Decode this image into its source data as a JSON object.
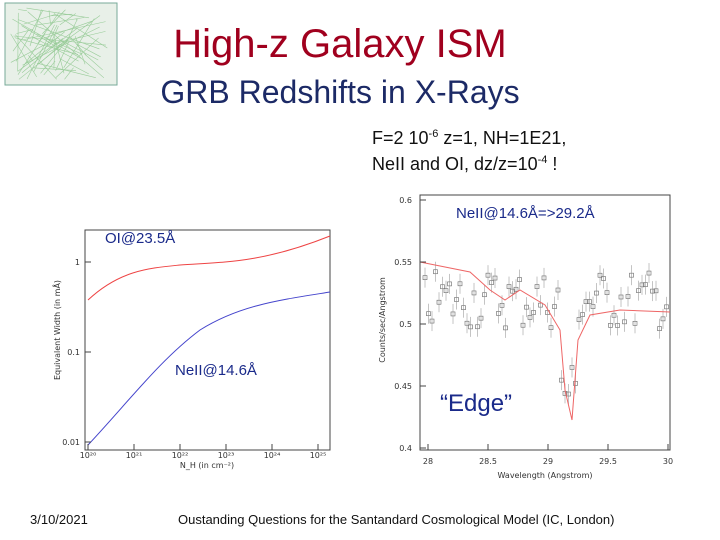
{
  "header": {
    "title": "High-z Galaxy ISM",
    "subtitle": "GRB Redshifts in X-Rays"
  },
  "note": {
    "line1": [
      "F=2 10",
      "-6",
      " z=1, NH=1E21,"
    ],
    "line2": [
      "NeII and OI, dz/z=10",
      "-4",
      " !"
    ]
  },
  "left_plot": {
    "ylabel": "Equivalent Width (in mÅ)",
    "xlabel": "N_H (in cm⁻²)",
    "yticks": [
      "1",
      "0.1",
      "0.01"
    ],
    "xticks": [
      "10²⁰",
      "10²¹",
      "10²²",
      "10²³",
      "10²⁴",
      "10²⁵"
    ],
    "annotations": [
      "OI@23.5Å",
      "NeII@14.6Å"
    ]
  },
  "right_plot": {
    "ylabel": "Counts/sec/Angstrom",
    "xlabel": "Wavelength (Angstrom)",
    "yticks": [
      "0.6",
      "0.55",
      "0.5",
      "0.45",
      "0.4"
    ],
    "xticks": [
      "28",
      "28.5",
      "29",
      "29.5",
      "30"
    ],
    "annotations": [
      "NeII@14.6Å=>29.2Å",
      "“Edge”"
    ]
  },
  "footer": {
    "date": "3/10/2021",
    "caption": "Oustanding Questions for the Santandard Cosmological Model (IC, London)"
  }
}
